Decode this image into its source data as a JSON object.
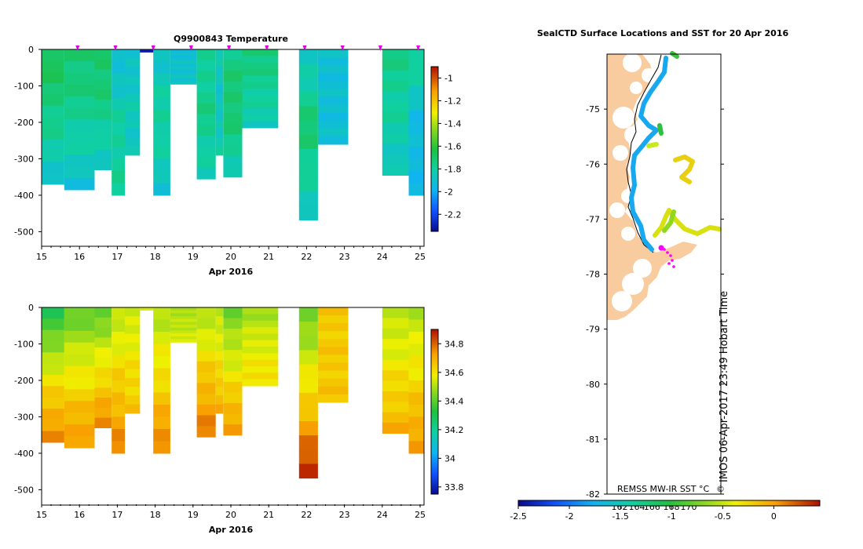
{
  "chart_data": [
    {
      "type": "heatmap",
      "title": "Q9900843  Temperature",
      "xlabel": "Apr 2016",
      "ylabel": "",
      "xlim": [
        15,
        25
      ],
      "ylim": [
        -540,
        0
      ],
      "xticks": [
        "15",
        "16",
        "17",
        "18",
        "19",
        "20",
        "21",
        "22",
        "23",
        "24",
        "25"
      ],
      "yticks": [
        "0",
        "-100",
        "-200",
        "-300",
        "-400",
        "-500"
      ],
      "profile_days": [
        15.95,
        16.95,
        17.95,
        18.95,
        19.95,
        20.95,
        21.95,
        22.95,
        23.95,
        24.95
      ],
      "colorbar": {
        "min": -2.35,
        "max": -0.9,
        "ticks": [
          "-1",
          "-1.2",
          "-1.4",
          "-1.6",
          "-1.8",
          "-2",
          "-2.2"
        ]
      },
      "columns": [
        {
          "x0": 15.0,
          "x1": 15.6,
          "depth": 370,
          "top": -1.65,
          "mid": -1.75,
          "bottom": -1.9
        },
        {
          "x0": 15.6,
          "x1": 16.4,
          "depth": 385,
          "top": -1.7,
          "mid": -1.78,
          "bottom": -1.92
        },
        {
          "x0": 16.4,
          "x1": 16.85,
          "depth": 330,
          "top": -1.68,
          "mid": -1.75,
          "bottom": -1.9
        },
        {
          "x0": 16.85,
          "x1": 17.2,
          "depth": 400,
          "top": -1.95,
          "mid": -1.8,
          "bottom": -1.78
        },
        {
          "x0": 17.2,
          "x1": 17.6,
          "depth": 290,
          "top": -1.92,
          "mid": -1.85,
          "bottom": -1.88
        },
        {
          "x0": 17.6,
          "x1": 17.95,
          "depth": 7,
          "top": -2.3,
          "mid": -2.3,
          "bottom": -2.3
        },
        {
          "x0": 17.95,
          "x1": 18.4,
          "depth": 400,
          "top": -1.9,
          "mid": -1.78,
          "bottom": -1.9
        },
        {
          "x0": 18.4,
          "x1": 19.1,
          "depth": 95,
          "top": -1.92,
          "mid": -1.9,
          "bottom": -1.9
        },
        {
          "x0": 19.1,
          "x1": 19.6,
          "depth": 355,
          "top": -1.8,
          "mid": -1.75,
          "bottom": -1.85
        },
        {
          "x0": 19.6,
          "x1": 19.8,
          "depth": 290,
          "top": -1.85,
          "mid": -1.9,
          "bottom": -1.82
        },
        {
          "x0": 19.8,
          "x1": 20.3,
          "depth": 350,
          "top": -1.75,
          "mid": -1.7,
          "bottom": -1.85
        },
        {
          "x0": 20.3,
          "x1": 21.25,
          "depth": 215,
          "top": -1.72,
          "mid": -1.78,
          "bottom": -1.85
        },
        {
          "x0": 21.8,
          "x1": 22.3,
          "depth": 468,
          "top": -1.88,
          "mid": -1.7,
          "bottom": -1.9
        },
        {
          "x0": 22.3,
          "x1": 23.1,
          "depth": 260,
          "top": -1.92,
          "mid": -1.92,
          "bottom": -1.92
        },
        {
          "x0": 24.0,
          "x1": 24.7,
          "depth": 345,
          "top": -1.75,
          "mid": -1.8,
          "bottom": -1.88
        },
        {
          "x0": 24.7,
          "x1": 25.1,
          "depth": 400,
          "top": -1.75,
          "mid": -1.95,
          "bottom": -1.95
        }
      ]
    },
    {
      "type": "heatmap",
      "title": "",
      "xlabel": "Apr 2016",
      "ylabel": "",
      "xlim": [
        15,
        25
      ],
      "ylim": [
        -540,
        0
      ],
      "xticks": [
        "15",
        "16",
        "17",
        "18",
        "19",
        "20",
        "21",
        "22",
        "23",
        "24",
        "25"
      ],
      "yticks": [
        "0",
        "-100",
        "-200",
        "-300",
        "-400",
        "-500"
      ],
      "colorbar": {
        "min": 33.75,
        "max": 34.9,
        "ticks": [
          "34.8",
          "34.6",
          "34.4",
          "34.2",
          "34",
          "33.8"
        ]
      },
      "columns": [
        {
          "x0": 15.0,
          "x1": 15.6,
          "depth": 370,
          "top": 34.3,
          "mid": 34.58,
          "bottom": 34.78
        },
        {
          "x0": 15.6,
          "x1": 16.4,
          "depth": 385,
          "top": 34.4,
          "mid": 34.6,
          "bottom": 34.75
        },
        {
          "x0": 16.4,
          "x1": 16.85,
          "depth": 330,
          "top": 34.4,
          "mid": 34.6,
          "bottom": 34.76
        },
        {
          "x0": 16.85,
          "x1": 17.2,
          "depth": 400,
          "top": 34.5,
          "mid": 34.64,
          "bottom": 34.77
        },
        {
          "x0": 17.2,
          "x1": 17.6,
          "depth": 290,
          "top": 34.52,
          "mid": 34.6,
          "bottom": 34.66
        },
        {
          "x0": 17.6,
          "x1": 17.95,
          "depth": 7,
          "top": 34.55,
          "mid": 34.55,
          "bottom": 34.55
        },
        {
          "x0": 17.95,
          "x1": 18.4,
          "depth": 400,
          "top": 34.5,
          "mid": 34.62,
          "bottom": 34.78
        },
        {
          "x0": 18.4,
          "x1": 19.1,
          "depth": 95,
          "top": 34.5,
          "mid": 34.52,
          "bottom": 34.55
        },
        {
          "x0": 19.1,
          "x1": 19.6,
          "depth": 355,
          "top": 34.48,
          "mid": 34.65,
          "bottom": 34.78
        },
        {
          "x0": 19.6,
          "x1": 19.8,
          "depth": 290,
          "top": 34.5,
          "mid": 34.6,
          "bottom": 34.7
        },
        {
          "x0": 19.8,
          "x1": 20.3,
          "depth": 350,
          "top": 34.42,
          "mid": 34.58,
          "bottom": 34.75
        },
        {
          "x0": 20.3,
          "x1": 21.25,
          "depth": 215,
          "top": 34.48,
          "mid": 34.56,
          "bottom": 34.62
        },
        {
          "x0": 21.8,
          "x1": 22.3,
          "depth": 468,
          "top": 34.42,
          "mid": 34.62,
          "bottom": 34.88
        },
        {
          "x0": 22.3,
          "x1": 23.1,
          "depth": 260,
          "top": 34.65,
          "mid": 34.65,
          "bottom": 34.66
        },
        {
          "x0": 24.0,
          "x1": 24.7,
          "depth": 345,
          "top": 34.5,
          "mid": 34.6,
          "bottom": 34.7
        },
        {
          "x0": 24.7,
          "x1": 25.1,
          "depth": 400,
          "top": 34.5,
          "mid": 34.62,
          "bottom": 34.75
        }
      ]
    },
    {
      "type": "map",
      "title": "SealCTD Surface Locations and SST for 20 Apr 2016",
      "xlabel": "",
      "ylabel": "",
      "ylim": [
        -82,
        -74
      ],
      "yticks": [
        "-75",
        "-76",
        "-77",
        "-78",
        "-79",
        "-80",
        "-81",
        "-82"
      ],
      "xticks": [
        "162",
        "164",
        "166°",
        "168",
        "170"
      ],
      "colorbar": {
        "label": "REMSS MW-IR SST °C",
        "min": -2.5,
        "max": 0.45,
        "ticks": [
          "-2.5",
          "-2",
          "-1.5",
          "-1",
          "-0.5",
          "0"
        ]
      },
      "annotation": "IMOS 06-Apr-2017 23:49 Hobart Time",
      "copyright": "©",
      "land_color": "#f9cca0",
      "track_color": "#ff00ff"
    }
  ]
}
